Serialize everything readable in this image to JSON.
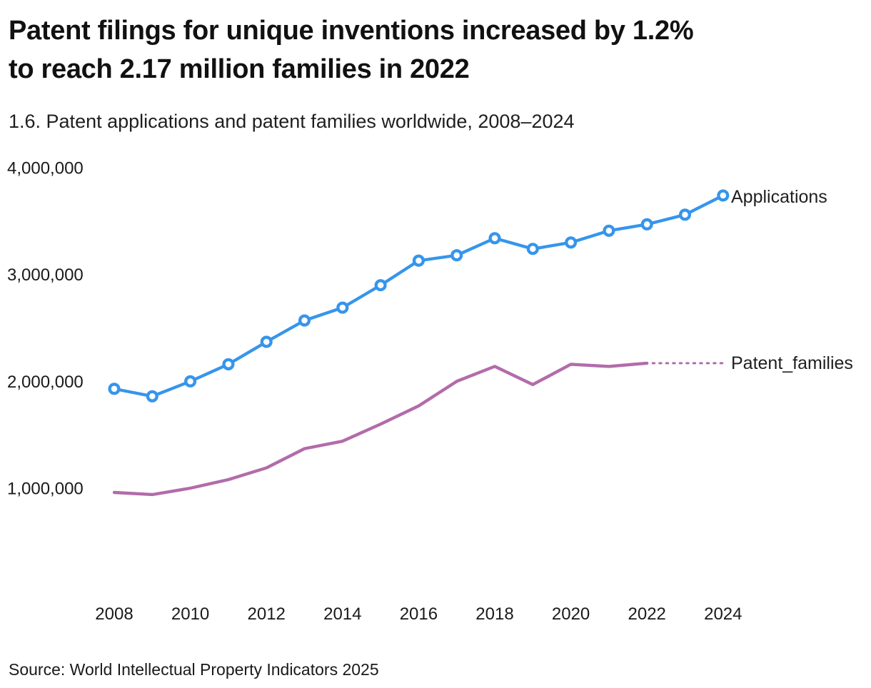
{
  "header": {
    "title_line1": "Patent filings for unique inventions increased by 1.2%",
    "title_line2": "to reach 2.17 million families in 2022",
    "subtitle": "1.6. Patent applications and patent families worldwide, 2008–2024"
  },
  "footer": {
    "source": "Source: World Intellectual Property Indicators 2025"
  },
  "colors": {
    "applications": "#3595EC",
    "patent_families": "#B26CAA",
    "text": "#1a1a1a",
    "background": "#ffffff"
  },
  "chart_data": {
    "type": "line",
    "x": [
      2008,
      2009,
      2010,
      2011,
      2012,
      2013,
      2014,
      2015,
      2016,
      2017,
      2018,
      2019,
      2020,
      2021,
      2022,
      2023,
      2024
    ],
    "series": [
      {
        "name": "Applications",
        "label": "Applications",
        "color": "#3595EC",
        "marker": "open-circle",
        "line_style": "solid",
        "values": [
          1930000,
          1860000,
          2000000,
          2160000,
          2370000,
          2570000,
          2690000,
          2900000,
          3130000,
          3180000,
          3340000,
          3240000,
          3300000,
          3410000,
          3470000,
          3560000,
          3740000
        ]
      },
      {
        "name": "Patent_families",
        "label": "Patent_families",
        "color": "#B26CAA",
        "marker": "none",
        "line_style": "solid, dotted leader line from last point (2022) to series label",
        "values": [
          960000,
          940000,
          1000000,
          1080000,
          1190000,
          1370000,
          1440000,
          1600000,
          1770000,
          2000000,
          2140000,
          1970000,
          2160000,
          2140000,
          2170000,
          null,
          null
        ]
      }
    ],
    "y_ticks": [
      {
        "value": 4000000,
        "label": "4,000,000"
      },
      {
        "value": 3000000,
        "label": "3,000,000"
      },
      {
        "value": 2000000,
        "label": "2,000,000"
      },
      {
        "value": 1000000,
        "label": "1,000,000"
      }
    ],
    "x_ticks": [
      2008,
      2010,
      2012,
      2014,
      2016,
      2018,
      2020,
      2022,
      2024
    ],
    "title": "1.6. Patent applications and patent families worldwide, 2008–2024",
    "xlabel": "",
    "ylabel": "",
    "ylim": [
      750000,
      4100000
    ],
    "xlim": [
      2008,
      2024
    ],
    "grid": false,
    "axis_lines": false,
    "legend_position": "direct labels at line ends (right side)"
  }
}
